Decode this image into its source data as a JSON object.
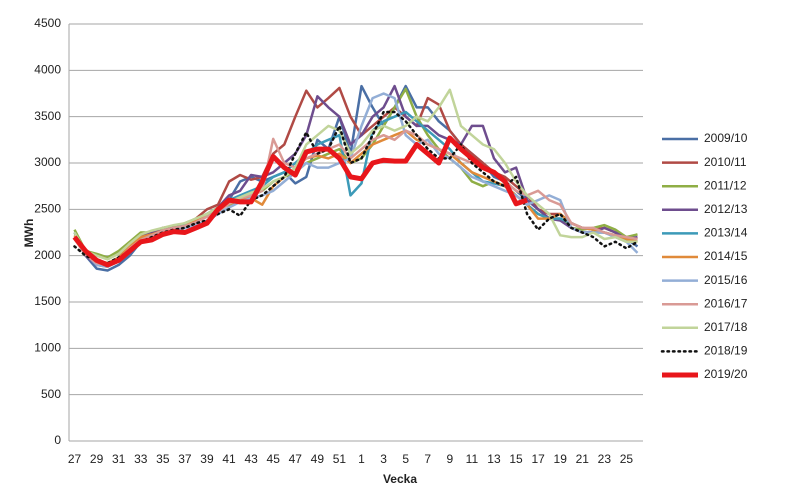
{
  "chart_data": {
    "type": "line",
    "x_label": "Vecka",
    "y_label": "MWh",
    "categories": [
      "27",
      null,
      "29",
      null,
      "31",
      null,
      "33",
      null,
      "35",
      null,
      "37",
      null,
      "39",
      null,
      "41",
      null,
      "43",
      null,
      "45",
      null,
      "47",
      null,
      "49",
      null,
      "51",
      null,
      "1",
      null,
      "3",
      null,
      "5",
      null,
      "7",
      null,
      "9",
      null,
      "11",
      null,
      "13",
      null,
      "15",
      null,
      "17",
      null,
      "19",
      null,
      "21",
      null,
      "23",
      null,
      "25",
      null
    ],
    "ylim": [
      0,
      4500
    ],
    "yticks": [
      0,
      500,
      1000,
      1500,
      2000,
      2500,
      3000,
      3500,
      4000,
      4500
    ],
    "grid": true,
    "series": [
      {
        "name": "2009/10",
        "color": "#4a6fa5",
        "width": 2.5,
        "values": [
          2250,
          2000,
          1860,
          1840,
          1900,
          2000,
          2150,
          2200,
          2250,
          2300,
          2300,
          2350,
          2450,
          2500,
          2600,
          2800,
          2850,
          2800,
          2850,
          2900,
          2780,
          2850,
          3250,
          3150,
          3500,
          3100,
          3830,
          3600,
          3400,
          3600,
          3830,
          3600,
          3600,
          3450,
          3350,
          3200,
          3100,
          3000,
          2850,
          2800,
          2700,
          2600,
          2500,
          2400,
          2400,
          2300,
          2250,
          2250,
          2250,
          2200,
          2180,
          2100
        ]
      },
      {
        "name": "2010/11",
        "color": "#b04a45",
        "width": 2.5,
        "values": [
          2200,
          2020,
          1900,
          1880,
          1950,
          2100,
          2200,
          2250,
          2300,
          2320,
          2330,
          2400,
          2500,
          2550,
          2800,
          2870,
          2820,
          2850,
          3100,
          3200,
          3500,
          3780,
          3600,
          3700,
          3810,
          3500,
          3300,
          3400,
          3500,
          3600,
          3500,
          3400,
          3700,
          3630,
          3350,
          3200,
          3100,
          3000,
          2900,
          2850,
          2750,
          2650,
          2500,
          2450,
          2450,
          2350,
          2300,
          2280,
          2300,
          2250,
          2200,
          2180
        ]
      },
      {
        "name": "2011/12",
        "color": "#8fae45",
        "width": 2.5,
        "values": [
          2280,
          2050,
          2020,
          1980,
          2050,
          2150,
          2250,
          2250,
          2300,
          2300,
          2350,
          2400,
          2450,
          2500,
          2550,
          2600,
          2650,
          2700,
          2800,
          2850,
          2900,
          3000,
          3050,
          3100,
          3150,
          3000,
          3050,
          3200,
          3400,
          3600,
          3800,
          3500,
          3300,
          3150,
          3050,
          2950,
          2800,
          2750,
          2800,
          2750,
          2650,
          2550,
          2450,
          2400,
          2400,
          2300,
          2280,
          2300,
          2330,
          2280,
          2200,
          2230
        ]
      },
      {
        "name": "2012/13",
        "color": "#6e4d8e",
        "width": 2.5,
        "values": [
          2200,
          2000,
          1900,
          1900,
          1980,
          2100,
          2200,
          2250,
          2300,
          2300,
          2330,
          2380,
          2450,
          2520,
          2650,
          2700,
          2870,
          2850,
          2900,
          3000,
          3100,
          3300,
          3720,
          3600,
          3500,
          3200,
          3300,
          3500,
          3600,
          3830,
          3500,
          3400,
          3400,
          3300,
          3250,
          3200,
          3400,
          3400,
          3050,
          2900,
          2950,
          2600,
          2500,
          2400,
          2380,
          2300,
          2250,
          2250,
          2300,
          2250,
          2180,
          2200
        ]
      },
      {
        "name": "2013/14",
        "color": "#3c9ab8",
        "width": 2.5,
        "values": [
          2250,
          2030,
          1920,
          1900,
          1960,
          2080,
          2180,
          2220,
          2260,
          2300,
          2330,
          2380,
          2450,
          2520,
          2600,
          2650,
          2700,
          2750,
          2850,
          2900,
          3000,
          3100,
          3200,
          3250,
          3300,
          2650,
          2780,
          3350,
          3450,
          3500,
          3550,
          3450,
          3350,
          3250,
          3150,
          3000,
          2900,
          2800,
          2780,
          2750,
          2650,
          2550,
          2450,
          2400,
          2400,
          2350,
          2300,
          2280,
          2250,
          2220,
          2180,
          2150
        ]
      },
      {
        "name": "2014/15",
        "color": "#e08a3a",
        "width": 2.5,
        "values": [
          2220,
          2040,
          1950,
          1920,
          1980,
          2100,
          2200,
          2230,
          2270,
          2300,
          2320,
          2380,
          2420,
          2480,
          2560,
          2600,
          2620,
          2550,
          2750,
          2850,
          2950,
          3050,
          3080,
          3050,
          3100,
          3000,
          3100,
          3200,
          3250,
          3300,
          3350,
          3250,
          3200,
          3150,
          3100,
          3000,
          2900,
          2850,
          2800,
          2750,
          2650,
          2550,
          2400,
          2400,
          2450,
          2350,
          2300,
          2280,
          2250,
          2220,
          2180,
          2150
        ]
      },
      {
        "name": "2015/16",
        "color": "#93aed6",
        "width": 2.5,
        "values": [
          2200,
          2020,
          1900,
          1880,
          1940,
          2060,
          2160,
          2200,
          2240,
          2280,
          2300,
          2330,
          2380,
          2450,
          2520,
          2580,
          2620,
          2650,
          2700,
          2800,
          2900,
          3000,
          2950,
          2950,
          3000,
          3050,
          3400,
          3700,
          3750,
          3700,
          3300,
          3200,
          3250,
          3100,
          3050,
          2950,
          2850,
          2800,
          2750,
          2700,
          2650,
          2550,
          2600,
          2650,
          2600,
          2300,
          2250,
          2250,
          2250,
          2200,
          2150,
          2030
        ]
      },
      {
        "name": "2016/17",
        "color": "#d99a95",
        "width": 2.5,
        "values": [
          2180,
          2010,
          1920,
          1900,
          1960,
          2080,
          2170,
          2220,
          2270,
          2300,
          2320,
          2360,
          2420,
          2480,
          2560,
          2620,
          2650,
          2700,
          3260,
          3000,
          2950,
          3050,
          3100,
          3150,
          3200,
          3050,
          3150,
          3250,
          3300,
          3250,
          3350,
          3300,
          3200,
          3150,
          3100,
          3050,
          3000,
          2950,
          2900,
          2800,
          2700,
          2650,
          2700,
          2600,
          2550,
          2350,
          2300,
          2300,
          2250,
          2220,
          2200,
          2180
        ]
      },
      {
        "name": "2017/18",
        "color": "#c1d49a",
        "width": 2.5,
        "values": [
          2250,
          2050,
          2000,
          1960,
          2020,
          2130,
          2230,
          2270,
          2300,
          2330,
          2350,
          2400,
          2450,
          2520,
          2580,
          2630,
          2680,
          2720,
          2800,
          2850,
          2950,
          3200,
          3300,
          3400,
          3350,
          3100,
          3200,
          3350,
          3400,
          3350,
          3400,
          3500,
          3450,
          3600,
          3790,
          3400,
          3300,
          3200,
          3150,
          3000,
          2800,
          2650,
          2550,
          2450,
          2220,
          2200,
          2200,
          2250,
          2180,
          2200,
          2150,
          2150
        ]
      },
      {
        "name": "2018/19",
        "color": "#111111",
        "width": 2.5,
        "dash": "dotted",
        "values": [
          2100,
          2000,
          1950,
          1920,
          1980,
          2050,
          2150,
          2200,
          2250,
          2280,
          2300,
          2350,
          2380,
          2450,
          2500,
          2430,
          2600,
          2650,
          2750,
          2850,
          3100,
          3330,
          3100,
          3150,
          3400,
          3000,
          3050,
          3300,
          3550,
          3550,
          3450,
          3300,
          3150,
          3050,
          3050,
          3200,
          3000,
          2900,
          2800,
          2750,
          2850,
          2450,
          2280,
          2400,
          2450,
          2300,
          2250,
          2200,
          2100,
          2150,
          2080,
          2150
        ]
      },
      {
        "name": "2019/20",
        "color": "#e8161b",
        "width": 5,
        "values": [
          2200,
          2050,
          1950,
          1900,
          1950,
          2050,
          2150,
          2170,
          2230,
          2260,
          2250,
          2300,
          2350,
          2500,
          2600,
          2580,
          2580,
          2800,
          3070,
          2950,
          2870,
          3120,
          3150,
          3150,
          3050,
          2850,
          2830,
          3000,
          3030,
          3020,
          3020,
          3200,
          3100,
          3000,
          3270,
          3150,
          3050,
          2950,
          2900,
          2800,
          2560,
          2600,
          null,
          null,
          null,
          null,
          null,
          null,
          null,
          null,
          null,
          null
        ]
      }
    ]
  }
}
